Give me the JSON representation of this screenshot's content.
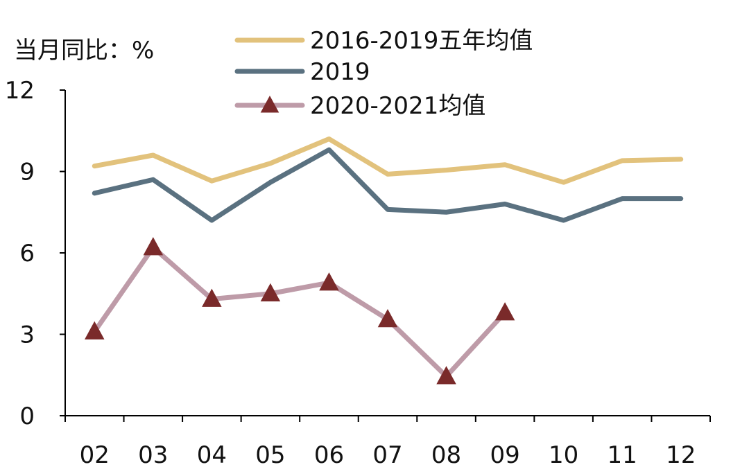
{
  "chart_data": {
    "type": "line",
    "ylabel": "当月同比：%",
    "ylim": [
      0,
      12
    ],
    "yticks": [
      0,
      3,
      6,
      9,
      12
    ],
    "categories": [
      "02",
      "03",
      "04",
      "05",
      "06",
      "07",
      "08",
      "09",
      "10",
      "11",
      "12"
    ],
    "grid": false,
    "legend_position": "top",
    "series": [
      {
        "name": "2016-2019五年均值",
        "color": "#E2C27C",
        "marker": "none",
        "values": [
          9.2,
          9.6,
          8.65,
          9.3,
          10.2,
          8.9,
          9.05,
          9.25,
          8.6,
          9.4,
          9.45
        ]
      },
      {
        "name": "2019",
        "color": "#5A7180",
        "marker": "none",
        "values": [
          8.2,
          8.7,
          7.2,
          8.6,
          9.8,
          7.6,
          7.5,
          7.8,
          7.2,
          8.0,
          8.0
        ]
      },
      {
        "name": "2020-2021均值",
        "color": "#BE9BA8",
        "marker": "triangle",
        "marker_color": "#7A2A2A",
        "values": [
          3.1,
          6.2,
          4.3,
          4.5,
          4.9,
          3.55,
          1.45,
          3.8,
          null,
          null,
          null
        ]
      }
    ]
  }
}
